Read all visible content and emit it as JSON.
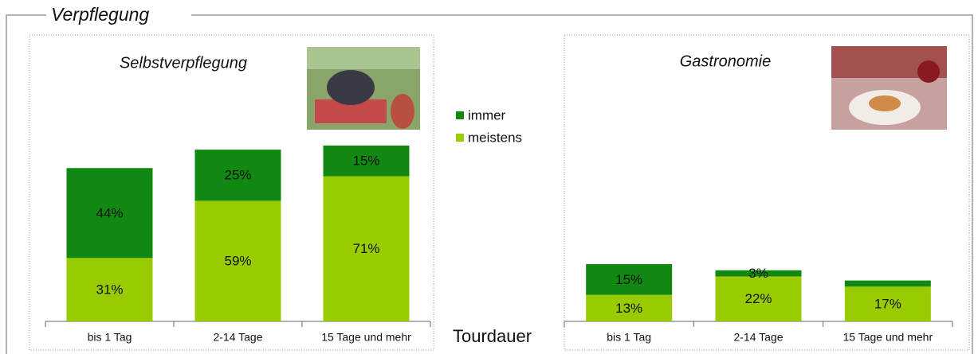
{
  "title": "Verpflegung",
  "xlabel": "Tourdauer",
  "chart_data": [
    {
      "type": "bar",
      "stacked": true,
      "title": "Selbstverpflegung",
      "categories": [
        "bis 1 Tag",
        "2-14 Tage",
        "15 Tage und mehr"
      ],
      "ylim": [
        0,
        100
      ],
      "series": [
        {
          "name": "meistens",
          "color": "#99cc00",
          "values": [
            31,
            59,
            71
          ],
          "value_labels": [
            "31%",
            "59%",
            "71%"
          ]
        },
        {
          "name": "immer",
          "color": "#118811",
          "values": [
            44,
            25,
            15
          ],
          "value_labels": [
            "44%",
            "25%",
            "15%"
          ]
        }
      ]
    },
    {
      "type": "bar",
      "stacked": true,
      "title": "Gastronomie",
      "categories": [
        "bis 1 Tag",
        "2-14 Tage",
        "15 Tage und mehr"
      ],
      "ylim": [
        0,
        100
      ],
      "series": [
        {
          "name": "meistens",
          "color": "#99cc00",
          "values": [
            13,
            22,
            17
          ],
          "value_labels": [
            "13%",
            "22%",
            "17%"
          ]
        },
        {
          "name": "immer",
          "color": "#118811",
          "values": [
            15,
            3,
            3
          ],
          "value_labels": [
            "15%",
            "3%",
            null
          ]
        }
      ]
    }
  ]
}
